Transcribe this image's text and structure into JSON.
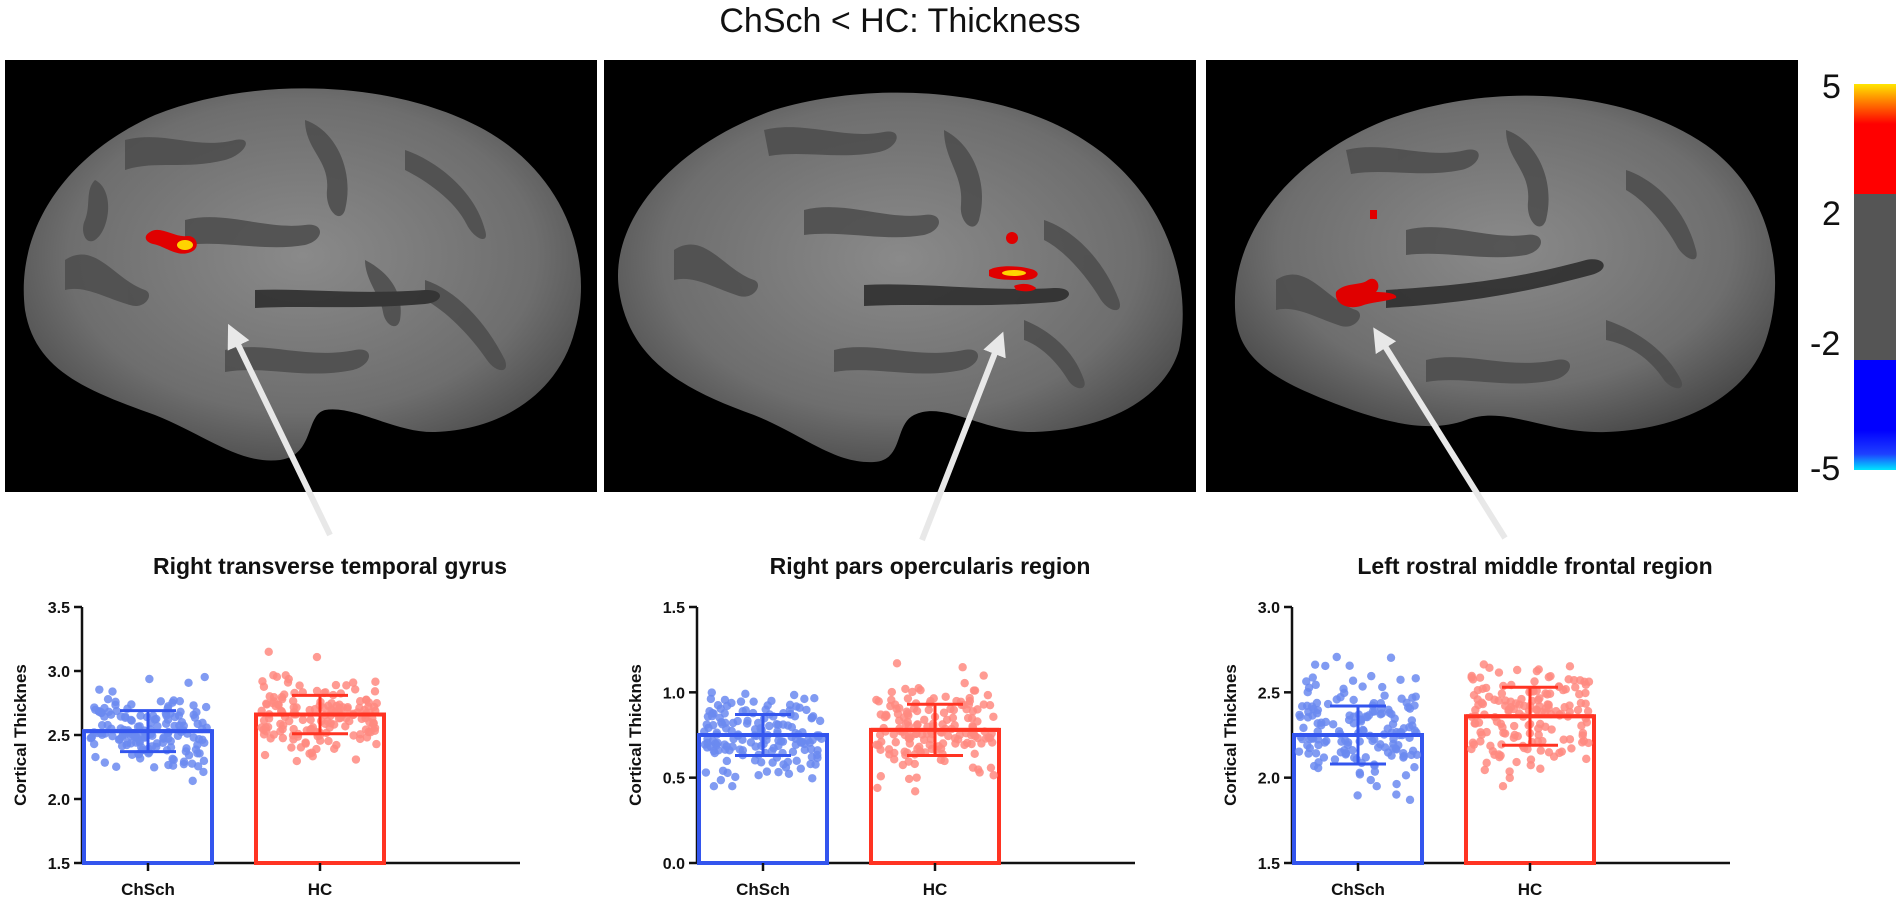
{
  "figure": {
    "title": "ChSch < HC: Thickness"
  },
  "colorbar": {
    "labels": [
      "5",
      "2",
      "-2",
      "-5"
    ],
    "colors": {
      "top": "#ffe600",
      "red": "#ff0000",
      "gray": "#555555",
      "blue": "#0000ff",
      "bottom": "#00e5ff"
    }
  },
  "brain_views": [
    {
      "hemisphere": "right-lateral"
    },
    {
      "hemisphere": "right-lateral"
    },
    {
      "hemisphere": "left-lateral"
    }
  ],
  "colors": {
    "chsch": "#3355ee",
    "chsch_dots": "#6b8af0",
    "hc": "#ff3322",
    "hc_dots": "#ff8a80",
    "arrow": "#e8e8e8",
    "cluster_red": "#e00000",
    "cluster_yellow": "#ffd400"
  },
  "chart_data": [
    {
      "type": "bar",
      "title": "Right transverse temporal gyrus",
      "ylabel": "Cortical Thicknes",
      "categories": [
        "ChSch",
        "HC"
      ],
      "values": [
        2.53,
        2.66
      ],
      "sd": [
        0.16,
        0.15
      ],
      "ylim": [
        1.5,
        3.5
      ],
      "yticks": [
        "1.5",
        "2.0",
        "2.5",
        "3.0",
        "3.5"
      ],
      "points_range": [
        [
          2.0,
          2.96
        ],
        [
          2.24,
          3.15
        ]
      ]
    },
    {
      "type": "bar",
      "title": "Right pars opercularis region",
      "ylabel": "Cortical Thicknes",
      "categories": [
        "ChSch",
        "HC"
      ],
      "values": [
        0.75,
        0.78
      ],
      "sd": [
        0.12,
        0.15
      ],
      "ylim": [
        0.0,
        1.5
      ],
      "yticks": [
        "0.0",
        "0.5",
        "1.0",
        "1.5"
      ],
      "points_range": [
        [
          0.45,
          1.07
        ],
        [
          0.42,
          1.17
        ]
      ]
    },
    {
      "type": "bar",
      "title": "Left rostral middle frontal region",
      "ylabel": "Cortical Thicknes",
      "categories": [
        "ChSch",
        "HC"
      ],
      "values": [
        2.25,
        2.36
      ],
      "sd": [
        0.17,
        0.17
      ],
      "ylim": [
        1.5,
        3.0
      ],
      "yticks": [
        "1.5",
        "2.0",
        "2.5",
        "3.0"
      ],
      "points_range": [
        [
          1.87,
          2.78
        ],
        [
          1.95,
          2.76
        ]
      ]
    }
  ]
}
